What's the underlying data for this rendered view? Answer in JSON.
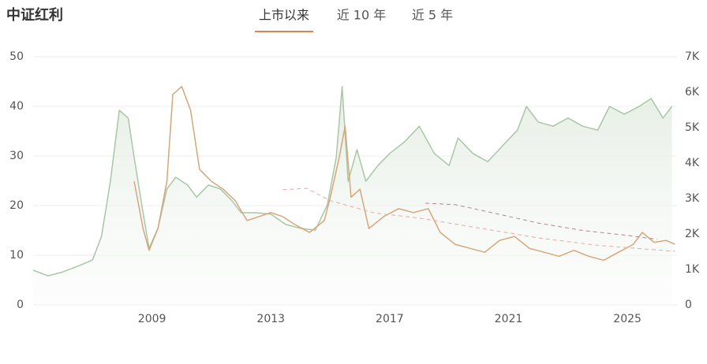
{
  "chart_data": {
    "type": "line",
    "title": "中证红利",
    "tabs": [
      "上市以来",
      "近 10 年",
      "近 5 年"
    ],
    "active_tab": 0,
    "xlim": [
      2005,
      2026.67
    ],
    "xticks": [
      2009,
      2013,
      2017,
      2021,
      2025
    ],
    "ylim": [
      0,
      50
    ],
    "yticks": [
      0,
      10,
      20,
      30,
      40,
      50
    ],
    "y2lim": [
      0,
      7000
    ],
    "y2ticks": [
      0,
      {
        "value": 1000,
        "label": "1K"
      },
      {
        "value": 2000,
        "label": "2K"
      },
      {
        "value": 3000,
        "label": "3K"
      },
      {
        "value": 4000,
        "label": "4K"
      },
      {
        "value": 5000,
        "label": "5K"
      },
      {
        "value": 6000,
        "label": "6K"
      },
      {
        "value": 7000,
        "label": "7K"
      }
    ],
    "grid": true,
    "series": [
      {
        "color": "#a9c6a7",
        "axis": "y2",
        "area": true,
        "x": [
          2005.0,
          2005.5,
          2006.0,
          2006.5,
          2007.0,
          2007.3,
          2007.6,
          2007.9,
          2008.2,
          2008.4,
          2008.7,
          2008.9,
          2009.2,
          2009.5,
          2009.8,
          2010.2,
          2010.5,
          2010.9,
          2011.3,
          2011.7,
          2012.0,
          2012.5,
          2013.0,
          2013.5,
          2014.0,
          2014.5,
          2014.9,
          2015.2,
          2015.4,
          2015.6,
          2015.9,
          2016.2,
          2016.6,
          2017.0,
          2017.5,
          2018.0,
          2018.5,
          2019.0,
          2019.3,
          2019.8,
          2020.3,
          2020.8,
          2021.3,
          2021.6,
          2022.0,
          2022.5,
          2023.0,
          2023.5,
          2024.0,
          2024.4,
          2024.9,
          2025.4,
          2025.8,
          2026.2,
          2026.5
        ],
        "values": [
          980,
          820,
          930,
          1090,
          1270,
          1930,
          3490,
          5490,
          5270,
          4160,
          2600,
          1600,
          2160,
          3270,
          3600,
          3380,
          3040,
          3380,
          3270,
          2930,
          2600,
          2600,
          2560,
          2270,
          2160,
          2110,
          2820,
          4160,
          6160,
          3490,
          4380,
          3490,
          3930,
          4270,
          4600,
          5040,
          4270,
          3930,
          4710,
          4270,
          4040,
          4490,
          4930,
          5600,
          5160,
          5040,
          5270,
          5040,
          4930,
          5600,
          5380,
          5600,
          5820,
          5270,
          5600
        ]
      },
      {
        "color": "#d5a779",
        "axis": "y",
        "x": [
          2008.4,
          2008.7,
          2008.9,
          2009.2,
          2009.5,
          2009.7,
          2010.0,
          2010.3,
          2010.6,
          2011.0,
          2011.4,
          2011.8,
          2012.2,
          2012.6,
          2013.0,
          2013.4,
          2013.8,
          2014.3,
          2014.8,
          2015.0,
          2015.3,
          2015.5,
          2015.7,
          2016.0,
          2016.3,
          2016.8,
          2017.3,
          2017.8,
          2018.3,
          2018.7,
          2019.2,
          2019.7,
          2020.2,
          2020.7,
          2021.2,
          2021.7,
          2022.2,
          2022.7,
          2023.2,
          2023.7,
          2024.2,
          2024.7,
          2025.2,
          2025.5,
          2025.9,
          2026.3,
          2026.6
        ],
        "values": [
          24.9,
          15.4,
          11,
          15.4,
          24.9,
          42.4,
          44,
          39.2,
          27.3,
          24.9,
          23.3,
          21,
          17,
          17.8,
          18.6,
          17.8,
          16.2,
          14.6,
          17,
          21.7,
          29.7,
          36,
          21.7,
          23.3,
          15.4,
          17.8,
          19.4,
          18.6,
          19.4,
          14.6,
          12.2,
          11.4,
          10.6,
          13,
          13.8,
          11.4,
          10.6,
          9.8,
          11,
          9.8,
          9,
          10.6,
          12.2,
          14.6,
          12.6,
          13,
          12.2
        ]
      },
      {
        "color": "#e8aaa2",
        "axis": "y",
        "dashed": true,
        "x": [
          2013.4,
          2014.2,
          2015.0,
          2016.5,
          2018.0,
          2020.0,
          2022.0,
          2024.0,
          2026.6
        ],
        "values": [
          23.2,
          23.5,
          21,
          18.5,
          17.5,
          15.5,
          13.5,
          12,
          10.8
        ]
      },
      {
        "color": "#b98588",
        "axis": "y",
        "dashed": true,
        "x": [
          2018.2,
          2019.2,
          2020.5,
          2022.0,
          2023.5,
          2025.0,
          2026.0
        ],
        "values": [
          20.5,
          20.2,
          18.5,
          16.5,
          15,
          14,
          13.2
        ]
      }
    ]
  }
}
